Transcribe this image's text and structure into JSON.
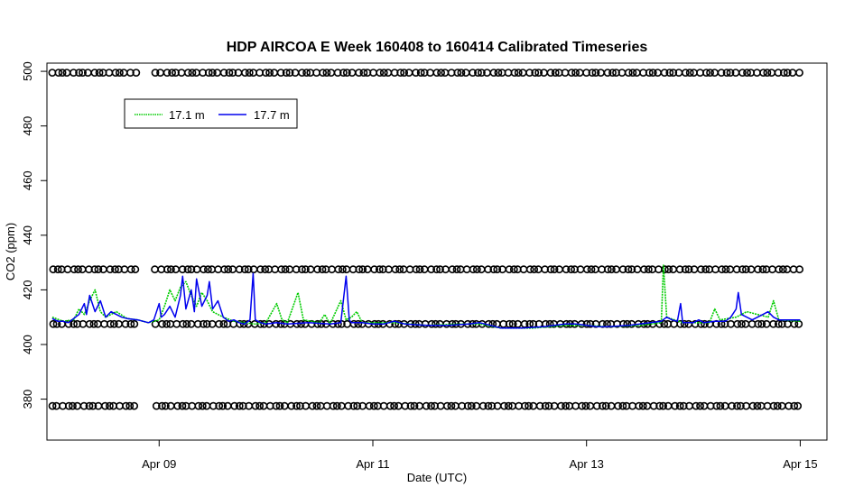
{
  "chart_data": {
    "type": "line",
    "title": "HDP AIRCOA E  Week 160408 to 160414  Calibrated Timeseries",
    "xlabel": "Date (UTC)",
    "ylabel": "CO2 (ppm)",
    "x_range_days_2016_04": [
      7.95,
      15.25
    ],
    "ylim": [
      365,
      503
    ],
    "x_ticks": [
      {
        "day": 9,
        "label": "Apr 09"
      },
      {
        "day": 11,
        "label": "Apr 11"
      },
      {
        "day": 13,
        "label": "Apr 13"
      },
      {
        "day": 15,
        "label": "Apr 15"
      }
    ],
    "y_ticks": [
      380,
      400,
      420,
      440,
      460,
      480,
      500
    ],
    "grid": false,
    "legend": {
      "placement": "top-left",
      "entries": [
        {
          "label": "17.1 m",
          "color": "#00cc00",
          "style": "dotted"
        },
        {
          "label": "17.7 m",
          "color": "#0000ee",
          "style": "solid"
        }
      ]
    },
    "reference_levels": [
      {
        "y": 499.5,
        "marker": "open-circle"
      },
      {
        "y": 427.5,
        "marker": "open-circle"
      },
      {
        "y": 407.5,
        "marker": "open-circle"
      },
      {
        "y": 377.5,
        "marker": "open-circle"
      }
    ],
    "reference_gap": [
      8.8,
      8.95
    ],
    "series": [
      {
        "name": "17.1 m",
        "color": "#00cc00",
        "points": [
          [
            8.0,
            410
          ],
          [
            8.1,
            408.5
          ],
          [
            8.2,
            409
          ],
          [
            8.25,
            413
          ],
          [
            8.3,
            411
          ],
          [
            8.35,
            416
          ],
          [
            8.4,
            420
          ],
          [
            8.45,
            412
          ],
          [
            8.5,
            410
          ],
          [
            8.6,
            412
          ],
          [
            8.7,
            409.5
          ],
          [
            8.8,
            409
          ],
          [
            8.9,
            408
          ],
          [
            9.0,
            409
          ],
          [
            9.05,
            414
          ],
          [
            9.1,
            420
          ],
          [
            9.15,
            416
          ],
          [
            9.2,
            421
          ],
          [
            9.25,
            423
          ],
          [
            9.3,
            418
          ],
          [
            9.35,
            414
          ],
          [
            9.4,
            419
          ],
          [
            9.45,
            416
          ],
          [
            9.5,
            412
          ],
          [
            9.6,
            410
          ],
          [
            9.7,
            408.5
          ],
          [
            9.8,
            408
          ],
          [
            9.9,
            407.5
          ],
          [
            10.0,
            408
          ],
          [
            10.1,
            415
          ],
          [
            10.15,
            409
          ],
          [
            10.2,
            408
          ],
          [
            10.3,
            419
          ],
          [
            10.35,
            409
          ],
          [
            10.5,
            408
          ],
          [
            10.55,
            411
          ],
          [
            10.6,
            407.5
          ],
          [
            10.7,
            416
          ],
          [
            10.75,
            409
          ],
          [
            10.8,
            410
          ],
          [
            10.85,
            412
          ],
          [
            10.9,
            408
          ],
          [
            11.0,
            408
          ],
          [
            11.2,
            408
          ],
          [
            11.5,
            407
          ],
          [
            11.8,
            407.5
          ],
          [
            12.0,
            407.5
          ],
          [
            12.2,
            406
          ],
          [
            12.5,
            406
          ],
          [
            12.8,
            407
          ],
          [
            13.0,
            407
          ],
          [
            13.2,
            406.5
          ],
          [
            13.5,
            407
          ],
          [
            13.6,
            407.5
          ],
          [
            13.7,
            408
          ],
          [
            13.72,
            429
          ],
          [
            13.75,
            410
          ],
          [
            13.9,
            408
          ],
          [
            14.0,
            408
          ],
          [
            14.15,
            408
          ],
          [
            14.2,
            413
          ],
          [
            14.25,
            409
          ],
          [
            14.4,
            410
          ],
          [
            14.5,
            412
          ],
          [
            14.6,
            411
          ],
          [
            14.7,
            410
          ],
          [
            14.75,
            416
          ],
          [
            14.8,
            409
          ],
          [
            15.0,
            408.5
          ]
        ]
      },
      {
        "name": "17.7 m",
        "color": "#0000ee",
        "points": [
          [
            8.0,
            409.5
          ],
          [
            8.05,
            408.5
          ],
          [
            8.1,
            408.5
          ],
          [
            8.15,
            408
          ],
          [
            8.2,
            409.5
          ],
          [
            8.25,
            411
          ],
          [
            8.3,
            415
          ],
          [
            8.32,
            411
          ],
          [
            8.35,
            418
          ],
          [
            8.4,
            412
          ],
          [
            8.45,
            416
          ],
          [
            8.5,
            410
          ],
          [
            8.55,
            412
          ],
          [
            8.6,
            411
          ],
          [
            8.65,
            410
          ],
          [
            8.7,
            409.5
          ],
          [
            8.8,
            409
          ],
          [
            8.9,
            408
          ],
          [
            8.95,
            409
          ],
          [
            9.0,
            415
          ],
          [
            9.02,
            410
          ],
          [
            9.05,
            411
          ],
          [
            9.1,
            414
          ],
          [
            9.15,
            410
          ],
          [
            9.2,
            418
          ],
          [
            9.22,
            425
          ],
          [
            9.25,
            413
          ],
          [
            9.3,
            420
          ],
          [
            9.33,
            412
          ],
          [
            9.35,
            424
          ],
          [
            9.4,
            414
          ],
          [
            9.45,
            418
          ],
          [
            9.47,
            423
          ],
          [
            9.5,
            413
          ],
          [
            9.55,
            416
          ],
          [
            9.6,
            410
          ],
          [
            9.65,
            408.5
          ],
          [
            9.7,
            409
          ],
          [
            9.75,
            408
          ],
          [
            9.8,
            407.5
          ],
          [
            9.85,
            409
          ],
          [
            9.88,
            426
          ],
          [
            9.9,
            409
          ],
          [
            9.95,
            408
          ],
          [
            10.0,
            407.5
          ],
          [
            10.1,
            408
          ],
          [
            10.2,
            407.5
          ],
          [
            10.4,
            408
          ],
          [
            10.6,
            407.5
          ],
          [
            10.7,
            408
          ],
          [
            10.75,
            425
          ],
          [
            10.78,
            409
          ],
          [
            10.8,
            408
          ],
          [
            10.9,
            408
          ],
          [
            11.0,
            407.5
          ],
          [
            11.1,
            407.5
          ],
          [
            11.2,
            408.5
          ],
          [
            11.3,
            407.5
          ],
          [
            11.5,
            407
          ],
          [
            11.7,
            407
          ],
          [
            11.9,
            407.5
          ],
          [
            12.0,
            408
          ],
          [
            12.1,
            407
          ],
          [
            12.2,
            406
          ],
          [
            12.4,
            406
          ],
          [
            12.6,
            406.5
          ],
          [
            12.8,
            407.5
          ],
          [
            12.9,
            407.5
          ],
          [
            13.0,
            407
          ],
          [
            13.1,
            406.5
          ],
          [
            13.2,
            406.5
          ],
          [
            13.4,
            407
          ],
          [
            13.5,
            407.5
          ],
          [
            13.6,
            408
          ],
          [
            13.7,
            408.5
          ],
          [
            13.75,
            410
          ],
          [
            13.8,
            409
          ],
          [
            13.85,
            408.5
          ],
          [
            13.88,
            415
          ],
          [
            13.9,
            408
          ],
          [
            14.0,
            408
          ],
          [
            14.05,
            409
          ],
          [
            14.1,
            408
          ],
          [
            14.2,
            408.5
          ],
          [
            14.3,
            408.5
          ],
          [
            14.35,
            410
          ],
          [
            14.4,
            413
          ],
          [
            14.42,
            419
          ],
          [
            14.45,
            411
          ],
          [
            14.5,
            410
          ],
          [
            14.55,
            409
          ],
          [
            14.6,
            410
          ],
          [
            14.65,
            411
          ],
          [
            14.7,
            412
          ],
          [
            14.75,
            410
          ],
          [
            14.8,
            409
          ],
          [
            14.9,
            409
          ],
          [
            15.0,
            409
          ]
        ]
      }
    ]
  }
}
